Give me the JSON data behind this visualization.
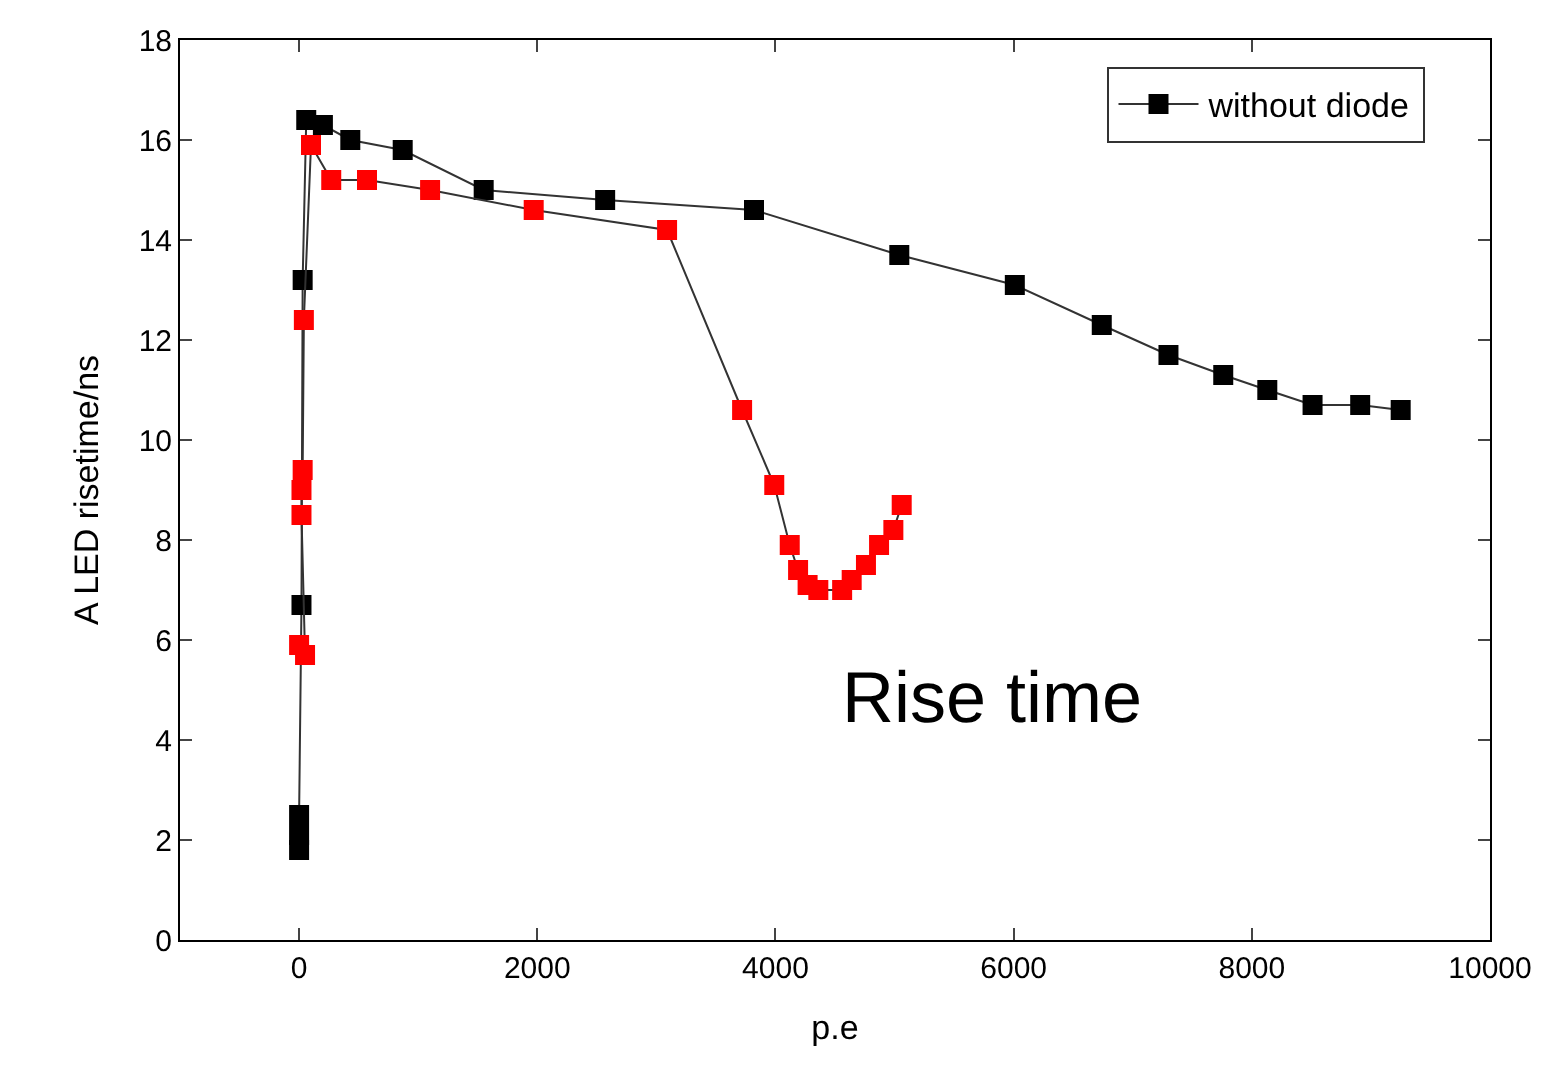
{
  "chart_data": {
    "type": "line",
    "xlabel": "p.e",
    "ylabel": "A LED risetime/ns",
    "xlim": [
      -1000,
      10000
    ],
    "ylim": [
      0,
      18
    ],
    "xticks": [
      0,
      2000,
      4000,
      6000,
      8000,
      10000
    ],
    "yticks": [
      0,
      2,
      4,
      6,
      8,
      10,
      12,
      14,
      16,
      18
    ],
    "marker": "square",
    "line_style": "solid",
    "legend": "top right",
    "annotations": [
      "Rise time"
    ],
    "series": [
      {
        "name": "without diode",
        "color": "#000000",
        "x": [
          0,
          0,
          0,
          20,
          30,
          60,
          200,
          430,
          870,
          1550,
          2570,
          3820,
          5040,
          6010,
          6740,
          7300,
          7760,
          8130,
          8510,
          8910,
          9250
        ],
        "values": [
          1.8,
          2.1,
          2.5,
          6.7,
          13.2,
          16.4,
          16.3,
          16.0,
          15.8,
          15.0,
          14.8,
          14.6,
          13.7,
          13.1,
          12.3,
          11.7,
          11.3,
          11.0,
          10.7,
          10.7,
          10.6
        ]
      },
      {
        "color": "#ff0000",
        "x": [
          0,
          50,
          20,
          20,
          30,
          40,
          100,
          270,
          570,
          1100,
          1970,
          3090,
          3720,
          3990,
          4120,
          4190,
          4270,
          4360,
          4560,
          4640,
          4760,
          4870,
          4990,
          5060
        ],
        "values": [
          5.9,
          5.7,
          8.5,
          9.0,
          9.4,
          12.4,
          15.9,
          15.2,
          15.2,
          15.0,
          14.6,
          14.2,
          10.6,
          9.1,
          7.9,
          7.4,
          7.1,
          7.0,
          7.0,
          7.2,
          7.5,
          7.9,
          8.2,
          8.7
        ]
      }
    ]
  }
}
